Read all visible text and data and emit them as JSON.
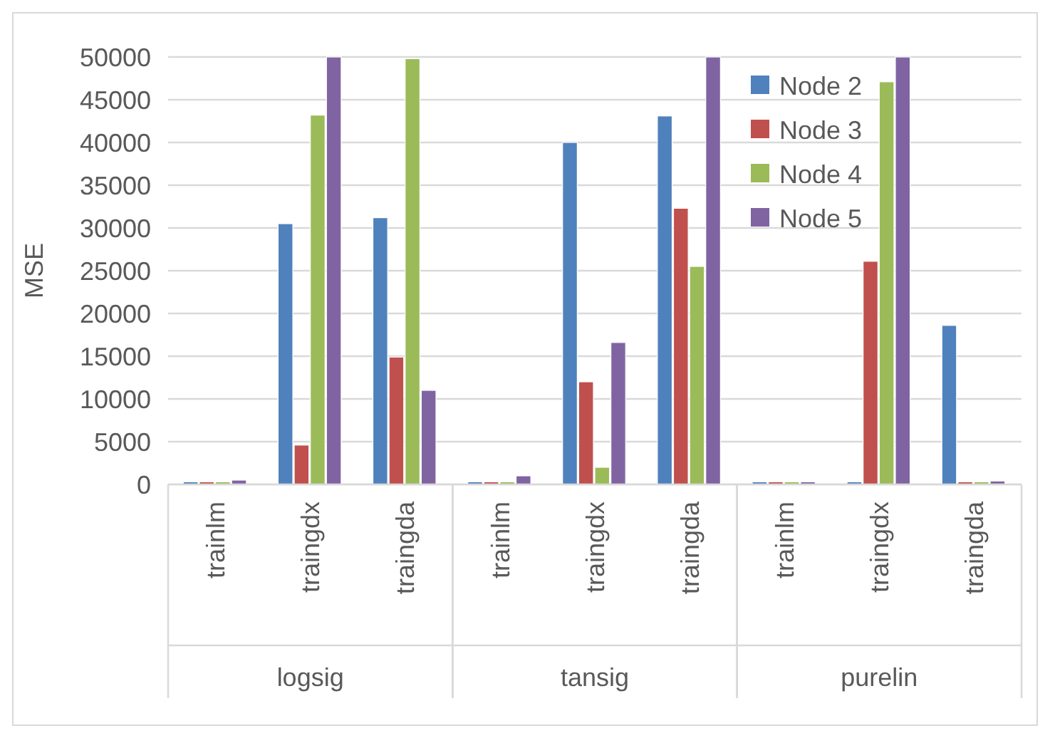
{
  "chart_data": {
    "type": "bar",
    "ylabel": "MSE",
    "categories": [
      "trainlm",
      "traingdx",
      "traingda",
      "trainlm",
      "traingdx",
      "traingda",
      "trainlm",
      "traingdx",
      "traingda"
    ],
    "series": [
      {
        "name": "Node 2",
        "color": "#4f81bd",
        "values": [
          300,
          30500,
          31200,
          300,
          40000,
          43100,
          300,
          300,
          18600
        ]
      },
      {
        "name": "Node 3",
        "color": "#c0504d",
        "values": [
          300,
          4600,
          14900,
          300,
          12000,
          32300,
          300,
          26100,
          300
        ]
      },
      {
        "name": "Node 4",
        "color": "#9bbb59",
        "values": [
          300,
          43200,
          49800,
          300,
          2000,
          25500,
          300,
          47100,
          300
        ]
      },
      {
        "name": "Node 5",
        "color": "#8064a2",
        "values": [
          500,
          50000,
          11000,
          1000,
          16600,
          50000,
          300,
          50000,
          400
        ]
      }
    ],
    "ylim": [
      0,
      50000
    ],
    "yticks": [
      0,
      5000,
      10000,
      15000,
      20000,
      25000,
      30000,
      35000,
      40000,
      45000,
      50000
    ],
    "grid": "y",
    "legend": "top right",
    "annotations": [
      "logsig",
      "tansig",
      "purelin"
    ]
  }
}
